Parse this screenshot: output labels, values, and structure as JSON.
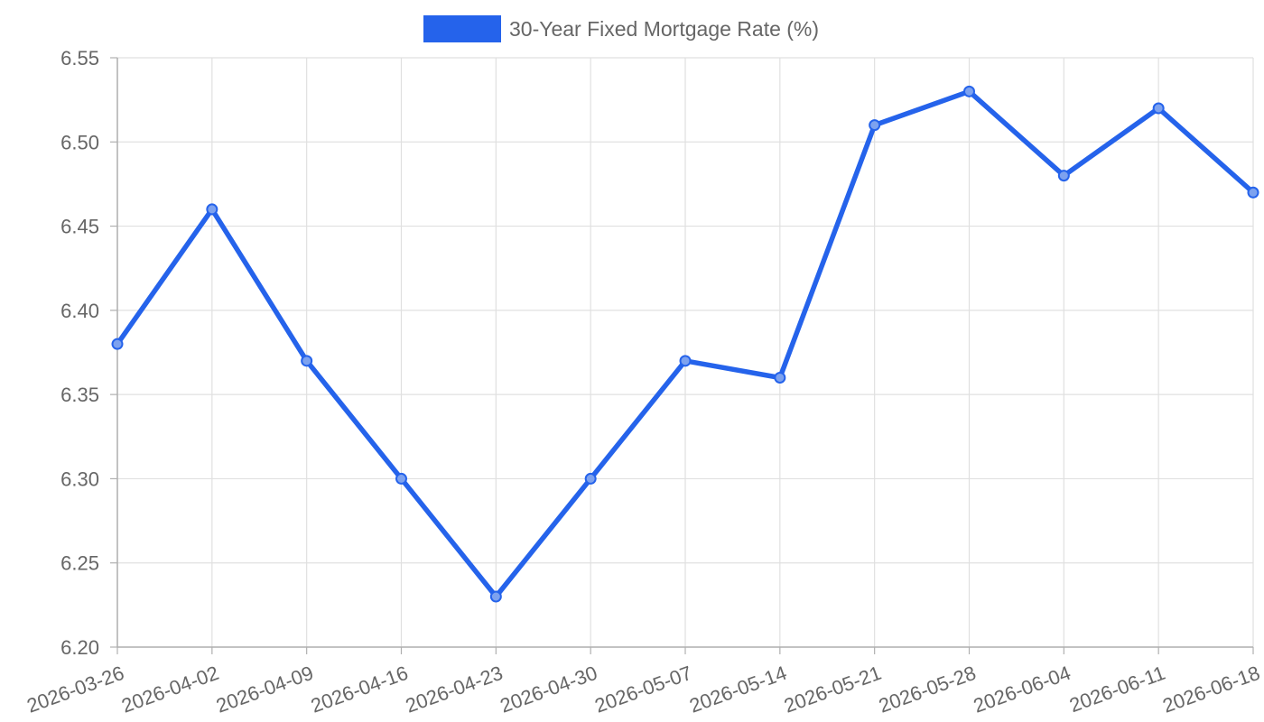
{
  "chart_data": {
    "type": "line",
    "title": "",
    "xlabel": "",
    "ylabel": "",
    "x": [
      "2026-03-26",
      "2026-04-02",
      "2026-04-09",
      "2026-04-16",
      "2026-04-23",
      "2026-04-30",
      "2026-05-07",
      "2026-05-14",
      "2026-05-21",
      "2026-05-28",
      "2026-06-04",
      "2026-06-11",
      "2026-06-18"
    ],
    "series": [
      {
        "name": "30-Year Fixed Mortgage Rate (%)",
        "values": [
          6.38,
          6.46,
          6.37,
          6.3,
          6.23,
          6.3,
          6.37,
          6.36,
          6.51,
          6.53,
          6.48,
          6.52,
          6.47
        ],
        "color": "#2563eb"
      }
    ],
    "ylim": [
      6.2,
      6.55
    ],
    "yticks": [
      "6.20",
      "6.25",
      "6.30",
      "6.35",
      "6.40",
      "6.45",
      "6.50",
      "6.55"
    ],
    "grid": true,
    "legend_position": "top-center"
  }
}
